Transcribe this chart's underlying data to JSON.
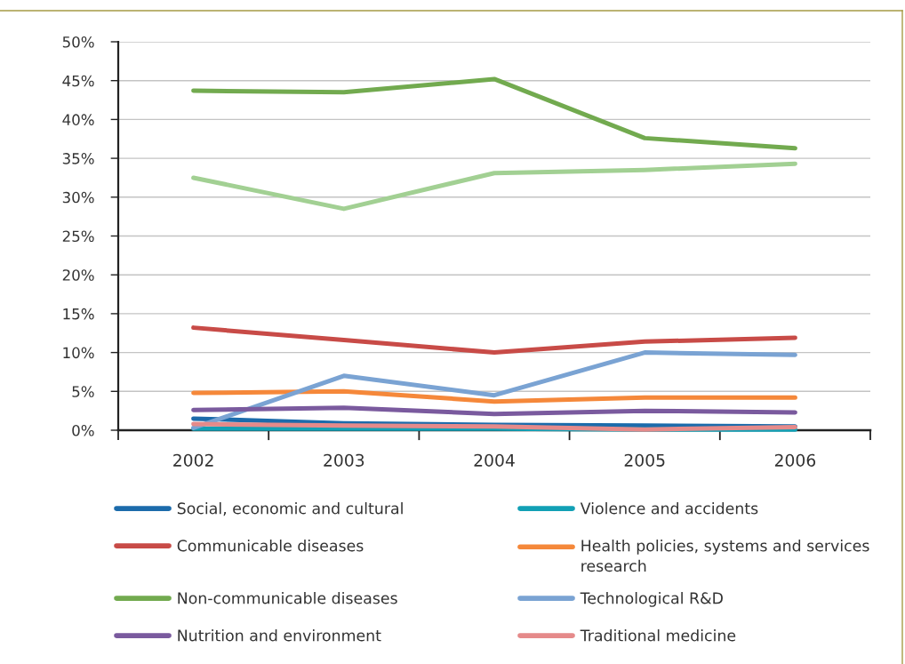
{
  "chart_data": {
    "type": "line",
    "categories": [
      "2002",
      "2003",
      "2004",
      "2005",
      "2006"
    ],
    "ylim": [
      0,
      50
    ],
    "yticks": [
      {
        "value": 0,
        "label": "0%"
      },
      {
        "value": 5,
        "label": "5%"
      },
      {
        "value": 10,
        "label": "10%"
      },
      {
        "value": 15,
        "label": "15%"
      },
      {
        "value": 20,
        "label": "20%"
      },
      {
        "value": 25,
        "label": "25%"
      },
      {
        "value": 30,
        "label": "30%"
      },
      {
        "value": 35,
        "label": "35%"
      },
      {
        "value": 40,
        "label": "40%"
      },
      {
        "value": 45,
        "label": "45%"
      },
      {
        "value": 50,
        "label": "50%"
      }
    ],
    "grid": "y",
    "legend": "bottom",
    "line_style": "solid",
    "series": [
      {
        "name": "Social, economic and cultural",
        "color": "#1c6bab",
        "values": [
          1.5,
          0.9,
          0.7,
          0.6,
          0.5
        ]
      },
      {
        "name": "Violence and accidents",
        "color": "#12a0b5",
        "values": [
          0.2,
          0.2,
          0.2,
          0.1,
          0.1
        ]
      },
      {
        "name": "Communicable diseases",
        "color": "#c84b47",
        "values": [
          13.2,
          11.6,
          10.0,
          11.4,
          11.9
        ]
      },
      {
        "name": "Health policies, systems and services research",
        "color": "#f5883a",
        "values": [
          4.8,
          5.0,
          3.7,
          4.2,
          4.2
        ]
      },
      {
        "name": "Non-communicable diseases",
        "color": "#72aa4f",
        "values": [
          43.7,
          43.5,
          45.2,
          37.6,
          36.3
        ]
      },
      {
        "name": "Technological R&D",
        "color": "#7aa3d3",
        "values": [
          0.3,
          7.0,
          4.5,
          10.0,
          9.7
        ]
      },
      {
        "name": "Nutrition and environment",
        "color": "#7a5a9e",
        "values": [
          2.6,
          2.9,
          2.1,
          2.5,
          2.3
        ]
      },
      {
        "name": "Traditional medicine",
        "color": "#e58a8a",
        "values": [
          0.8,
          0.6,
          0.5,
          0.1,
          0.4
        ]
      },
      {
        "color": "#a2d093",
        "values": [
          32.5,
          28.5,
          33.1,
          33.5,
          34.3
        ]
      }
    ]
  }
}
